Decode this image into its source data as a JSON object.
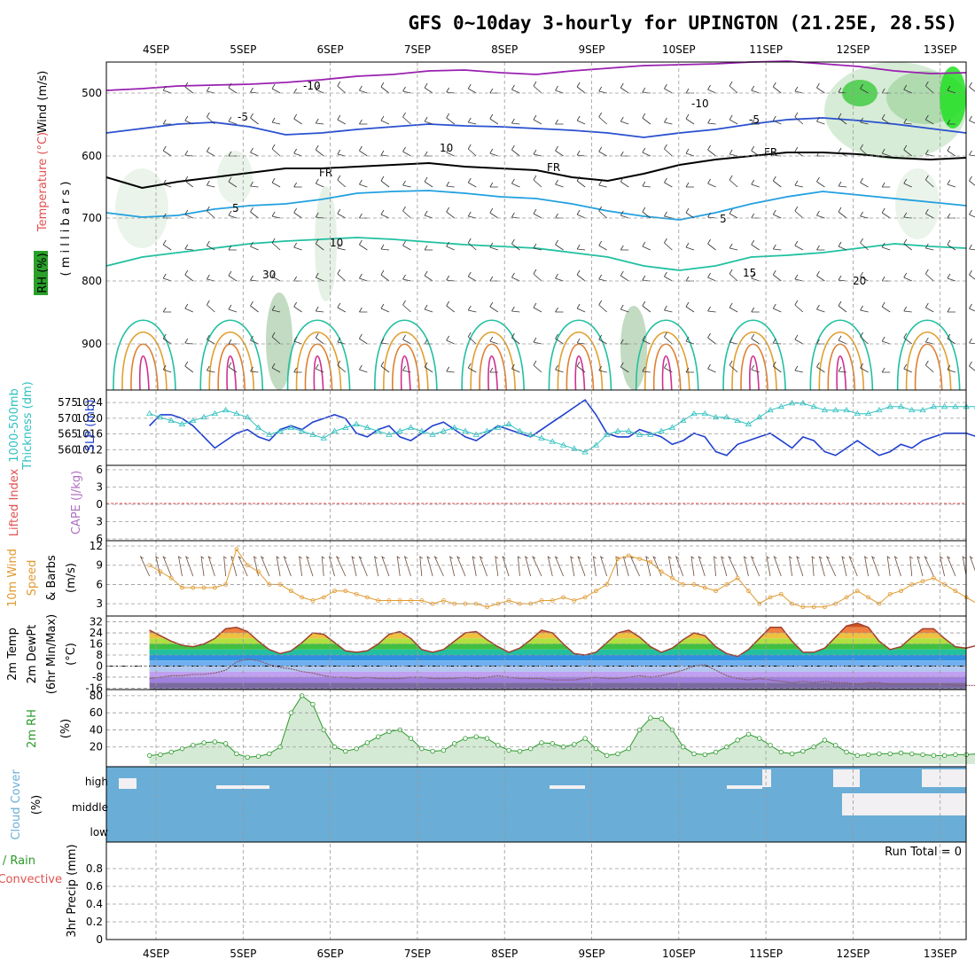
{
  "title": "GFS 0~10day 3-hourly for UPINGTON (21.25E, 28.5S)",
  "chart_data": {
    "type": "meteogram",
    "dates": [
      "4SEP",
      "5SEP",
      "6SEP",
      "7SEP",
      "8SEP",
      "9SEP",
      "10SEP",
      "11SEP",
      "12SEP",
      "13SEP"
    ],
    "colors": {
      "grid": "#9a9a9a",
      "sky": "#6aadd6",
      "cloud_clear": "#f2f0f2",
      "slp": "#1f3fd0",
      "thick": "#30c0c0",
      "wind": "#e09a30",
      "rh": "#2a9a2a",
      "tmax": "#a04030",
      "dew": "#8a5a6a",
      "cape_zero": "#e05050"
    },
    "panels": [
      {
        "id": "upper",
        "labels": [
          "Wind (m/s)",
          "Temperature (°C)",
          "RH (%)",
          "( m i l l i b a r s )"
        ],
        "ylim": [
          970,
          450
        ],
        "ticks": [
          500,
          600,
          700,
          800,
          900
        ],
        "contours": [
          {
            "level": "-10",
            "color": "#9a20b0",
            "values": [
              -10,
              -10,
              -10,
              -10,
              -10
            ]
          },
          {
            "level": "-5",
            "color": "#2a50d0",
            "values": [
              -5,
              -5,
              -5,
              -5,
              -5
            ]
          },
          {
            "level": "FR",
            "color": "#000000",
            "values": [
              0,
              0,
              0,
              0,
              0
            ]
          },
          {
            "level": "5",
            "color": "#20a0e0",
            "values": [
              5,
              5,
              5,
              5,
              5
            ]
          },
          {
            "level": "10",
            "color": "#20c0a0",
            "values": [
              10,
              10,
              10,
              10,
              10
            ]
          },
          {
            "level": "15",
            "color": "#20c0a0",
            "values": [
              15,
              15,
              15,
              15,
              15
            ]
          },
          {
            "level": "20",
            "color": "#e0a030",
            "values": [
              20,
              20,
              20,
              20,
              20
            ]
          }
        ],
        "contour_labels": [
          "-10",
          "-10",
          "-5",
          "-5",
          "FR",
          "FR",
          "FR",
          "5",
          "5",
          "10",
          "15",
          "20",
          "10",
          "30"
        ]
      },
      {
        "id": "slp",
        "labels": [
          "1000-500mb",
          "Thickness (dm)",
          "SLP (mb)"
        ],
        "left_ticks": [
          560,
          565,
          570,
          575
        ],
        "right_ticks": [
          1012,
          1016,
          1020,
          1024
        ],
        "series": [
          {
            "name": "SLP",
            "unit": "mb",
            "values": [
              1018,
              1021,
              1021,
              1020,
              1018,
              1015,
              1012,
              1014,
              1016,
              1017,
              1015,
              1014,
              1017,
              1018,
              1017,
              1019,
              1020,
              1021,
              1020,
              1016,
              1015,
              1017,
              1018,
              1015,
              1014,
              1016,
              1018,
              1019,
              1017,
              1015,
              1014,
              1016,
              1018,
              1017,
              1016,
              1015,
              1017,
              1019,
              1021,
              1023,
              1025,
              1021,
              1016,
              1015,
              1015,
              1017,
              1016,
              1015,
              1013,
              1014,
              1016,
              1015,
              1011,
              1010,
              1013,
              1014,
              1015,
              1016,
              1014,
              1012,
              1015,
              1014,
              1011,
              1010,
              1012,
              1014,
              1012,
              1010,
              1011,
              1013,
              1012,
              1014,
              1015,
              1016,
              1016,
              1016,
              1015,
              1015
            ]
          },
          {
            "name": "Thickness",
            "unit": "dm",
            "values": [
              571,
              570,
              569,
              568,
              569,
              570,
              571,
              572,
              571,
              570,
              567,
              565,
              566,
              567,
              566,
              565,
              564,
              566,
              567,
              568,
              567,
              566,
              565,
              566,
              567,
              566,
              565,
              566,
              567,
              566,
              565,
              566,
              567,
              568,
              566,
              565,
              564,
              563,
              562,
              561,
              560,
              562,
              565,
              566,
              566,
              565,
              565,
              566,
              567,
              569,
              571,
              571,
              570,
              570,
              569,
              568,
              570,
              572,
              573,
              574,
              574,
              573,
              572,
              572,
              572,
              571,
              571,
              572,
              573,
              573,
              572,
              572,
              573,
              573,
              573,
              573,
              573,
              574
            ]
          }
        ]
      },
      {
        "id": "lifted",
        "labels": [
          "Lifted Index",
          "CAPE (J/kg)"
        ],
        "ticks": [
          "6",
          "0",
          "-6"
        ],
        "left_ticks": [
          6,
          3,
          0,
          -3,
          -6
        ],
        "right_ticks": [],
        "series": [
          {
            "name": "Lifted Index",
            "values": [
              0
            ]
          }
        ]
      },
      {
        "id": "wind10",
        "labels": [
          "10m Wind",
          "Speed",
          "& Barbs",
          "(m/s)"
        ],
        "ticks": [
          3,
          6,
          9,
          12
        ],
        "ylim": [
          1.5,
          12
        ],
        "series": [
          {
            "name": "Speed",
            "unit": "m/s",
            "values": [
              9,
              8,
              7,
              5.5,
              5.5,
              5.5,
              5.5,
              6,
              11.5,
              9,
              8,
              6,
              6,
              5,
              4,
              3.5,
              4,
              5,
              5,
              4.5,
              4,
              3.5,
              3.5,
              3.5,
              3.5,
              3.5,
              3,
              3.5,
              3,
              3,
              3,
              2.5,
              3,
              3.5,
              3,
              3,
              3.5,
              3.5,
              4,
              3.5,
              4,
              5,
              6,
              10,
              10.5,
              10,
              9.5,
              8,
              7,
              6,
              6,
              5.5,
              5,
              6,
              7,
              5,
              3,
              4,
              4.5,
              3,
              2.5,
              2.5,
              2.5,
              3,
              4,
              5,
              4,
              3,
              4.5,
              5,
              6,
              6.5,
              7,
              6,
              5,
              4,
              3,
              3.5,
              4.5,
              6,
              7.5
            ]
          }
        ]
      },
      {
        "id": "temp2m",
        "labels": [
          "2m Temp",
          "2m DewPt",
          "(6hr Min/Max)",
          "(°C)"
        ],
        "ticks": [
          32,
          24,
          16,
          8,
          0,
          -8,
          -16
        ],
        "ylim": [
          -17,
          33
        ],
        "series": [
          {
            "name": "2m Temp",
            "unit": "°C",
            "values": [
              26,
              22,
              18,
              15,
              14,
              16,
              20,
              27,
              28,
              25,
              18,
              12,
              9,
              11,
              17,
              24,
              23,
              17,
              11,
              10,
              11,
              16,
              23,
              25,
              20,
              12,
              10,
              12,
              18,
              24,
              25,
              19,
              14,
              10,
              13,
              19,
              26,
              24,
              16,
              9,
              8,
              10,
              17,
              24,
              26,
              21,
              14,
              10,
              13,
              19,
              24,
              22,
              14,
              9,
              7,
              12,
              20,
              28,
              28,
              18,
              10,
              10,
              13,
              21,
              29,
              31,
              28,
              18,
              12,
              14,
              21,
              27,
              27,
              20,
              14,
              13,
              15,
              22
            ]
          },
          {
            "name": "2m DewPt",
            "unit": "°C",
            "values": [
              -9,
              -8,
              -7,
              -7,
              -6,
              -6,
              -5,
              -3,
              3,
              5,
              4,
              1,
              -1,
              -2,
              -4,
              -5,
              -7,
              -8,
              -8,
              -9,
              -8,
              -9,
              -9,
              -9,
              -8,
              -8,
              -9,
              -9,
              -9,
              -8,
              -9,
              -8,
              -7,
              -8,
              -9,
              -9,
              -9,
              -10,
              -10,
              -10,
              -9,
              -8,
              -9,
              -9,
              -8,
              -7,
              -8,
              -7,
              -5,
              -3,
              0,
              1,
              -3,
              -7,
              -9,
              -10,
              -9,
              -10,
              -11,
              -12,
              -11,
              -12,
              -11,
              -12,
              -12,
              -13,
              -12,
              -12,
              -13,
              -13,
              -13,
              -13,
              -13,
              -13,
              -14,
              -14,
              -14,
              -13,
              -12
            ]
          }
        ]
      },
      {
        "id": "rh2m",
        "labels": [
          "2m RH",
          "(%)"
        ],
        "ticks": [
          20,
          40,
          60,
          80
        ],
        "ylim": [
          0,
          83
        ],
        "series": [
          {
            "name": "2m RH",
            "unit": "%",
            "values": [
              10,
              11,
              14,
              18,
              22,
              25,
              26,
              24,
              12,
              8,
              9,
              12,
              20,
              60,
              80,
              70,
              40,
              20,
              15,
              18,
              25,
              32,
              38,
              40,
              30,
              18,
              15,
              16,
              24,
              30,
              32,
              30,
              22,
              16,
              15,
              18,
              25,
              24,
              20,
              23,
              30,
              18,
              10,
              12,
              18,
              40,
              54,
              53,
              40,
              20,
              12,
              11,
              14,
              20,
              28,
              35,
              30,
              22,
              14,
              12,
              15,
              20,
              28,
              22,
              14,
              10,
              11,
              12,
              12,
              13,
              12,
              11,
              10,
              10,
              11,
              11,
              12,
              11
            ]
          }
        ]
      },
      {
        "id": "cloud",
        "labels": [
          "Cloud Cover",
          "(%)"
        ],
        "ticks": [
          "high",
          "middle",
          "low"
        ]
      },
      {
        "id": "precip",
        "labels": [
          "Total / Rain",
          "Convective",
          "3hr Precip (mm)"
        ],
        "ticks": [
          0,
          0.2,
          0.4,
          0.6,
          0.8
        ],
        "ylim": [
          0,
          1
        ],
        "series": [
          {
            "name": "3hr Precip",
            "unit": "mm",
            "values": [
              0
            ]
          }
        ]
      }
    ],
    "annotations": {
      "run_total": "Run Total = 0"
    }
  }
}
